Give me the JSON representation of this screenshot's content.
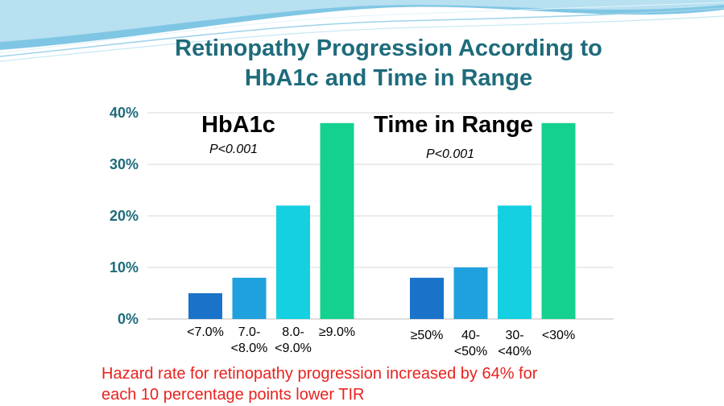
{
  "slide": {
    "title_line1": "Retinopathy Progression According to",
    "title_line2": "HbA1c and Time in Range",
    "footnote_line1": "Hazard rate for retinopathy progression increased by 64% for",
    "footnote_line2": "each 10 percentage points lower TIR"
  },
  "colors": {
    "title": "#1e6b7b",
    "footnote": "#e8231f",
    "bar_dark_blue": "#1a73c9",
    "bar_mid_blue": "#1ea1dd",
    "bar_cyan": "#14d0e0",
    "bar_green": "#14d190"
  },
  "chart_data": {
    "type": "bar",
    "ylim": [
      0,
      40
    ],
    "yticks": [
      "0%",
      "10%",
      "20%",
      "30%",
      "40%"
    ],
    "grid": true,
    "groups": [
      {
        "title": "HbA1c",
        "p_value": "P<0.001",
        "categories": [
          [
            "<7.0%"
          ],
          [
            "7.0-",
            "<8.0%"
          ],
          [
            "8.0-",
            "<9.0%"
          ],
          [
            "≥9.0%"
          ]
        ],
        "values": [
          5,
          8,
          22,
          38
        ]
      },
      {
        "title": "Time in Range",
        "p_value": "P<0.001",
        "categories": [
          [
            "≥50%"
          ],
          [
            "40-",
            "<50%"
          ],
          [
            "30-",
            "<40%"
          ],
          [
            "<30%"
          ]
        ],
        "values": [
          8,
          10,
          22,
          38
        ]
      }
    ]
  }
}
